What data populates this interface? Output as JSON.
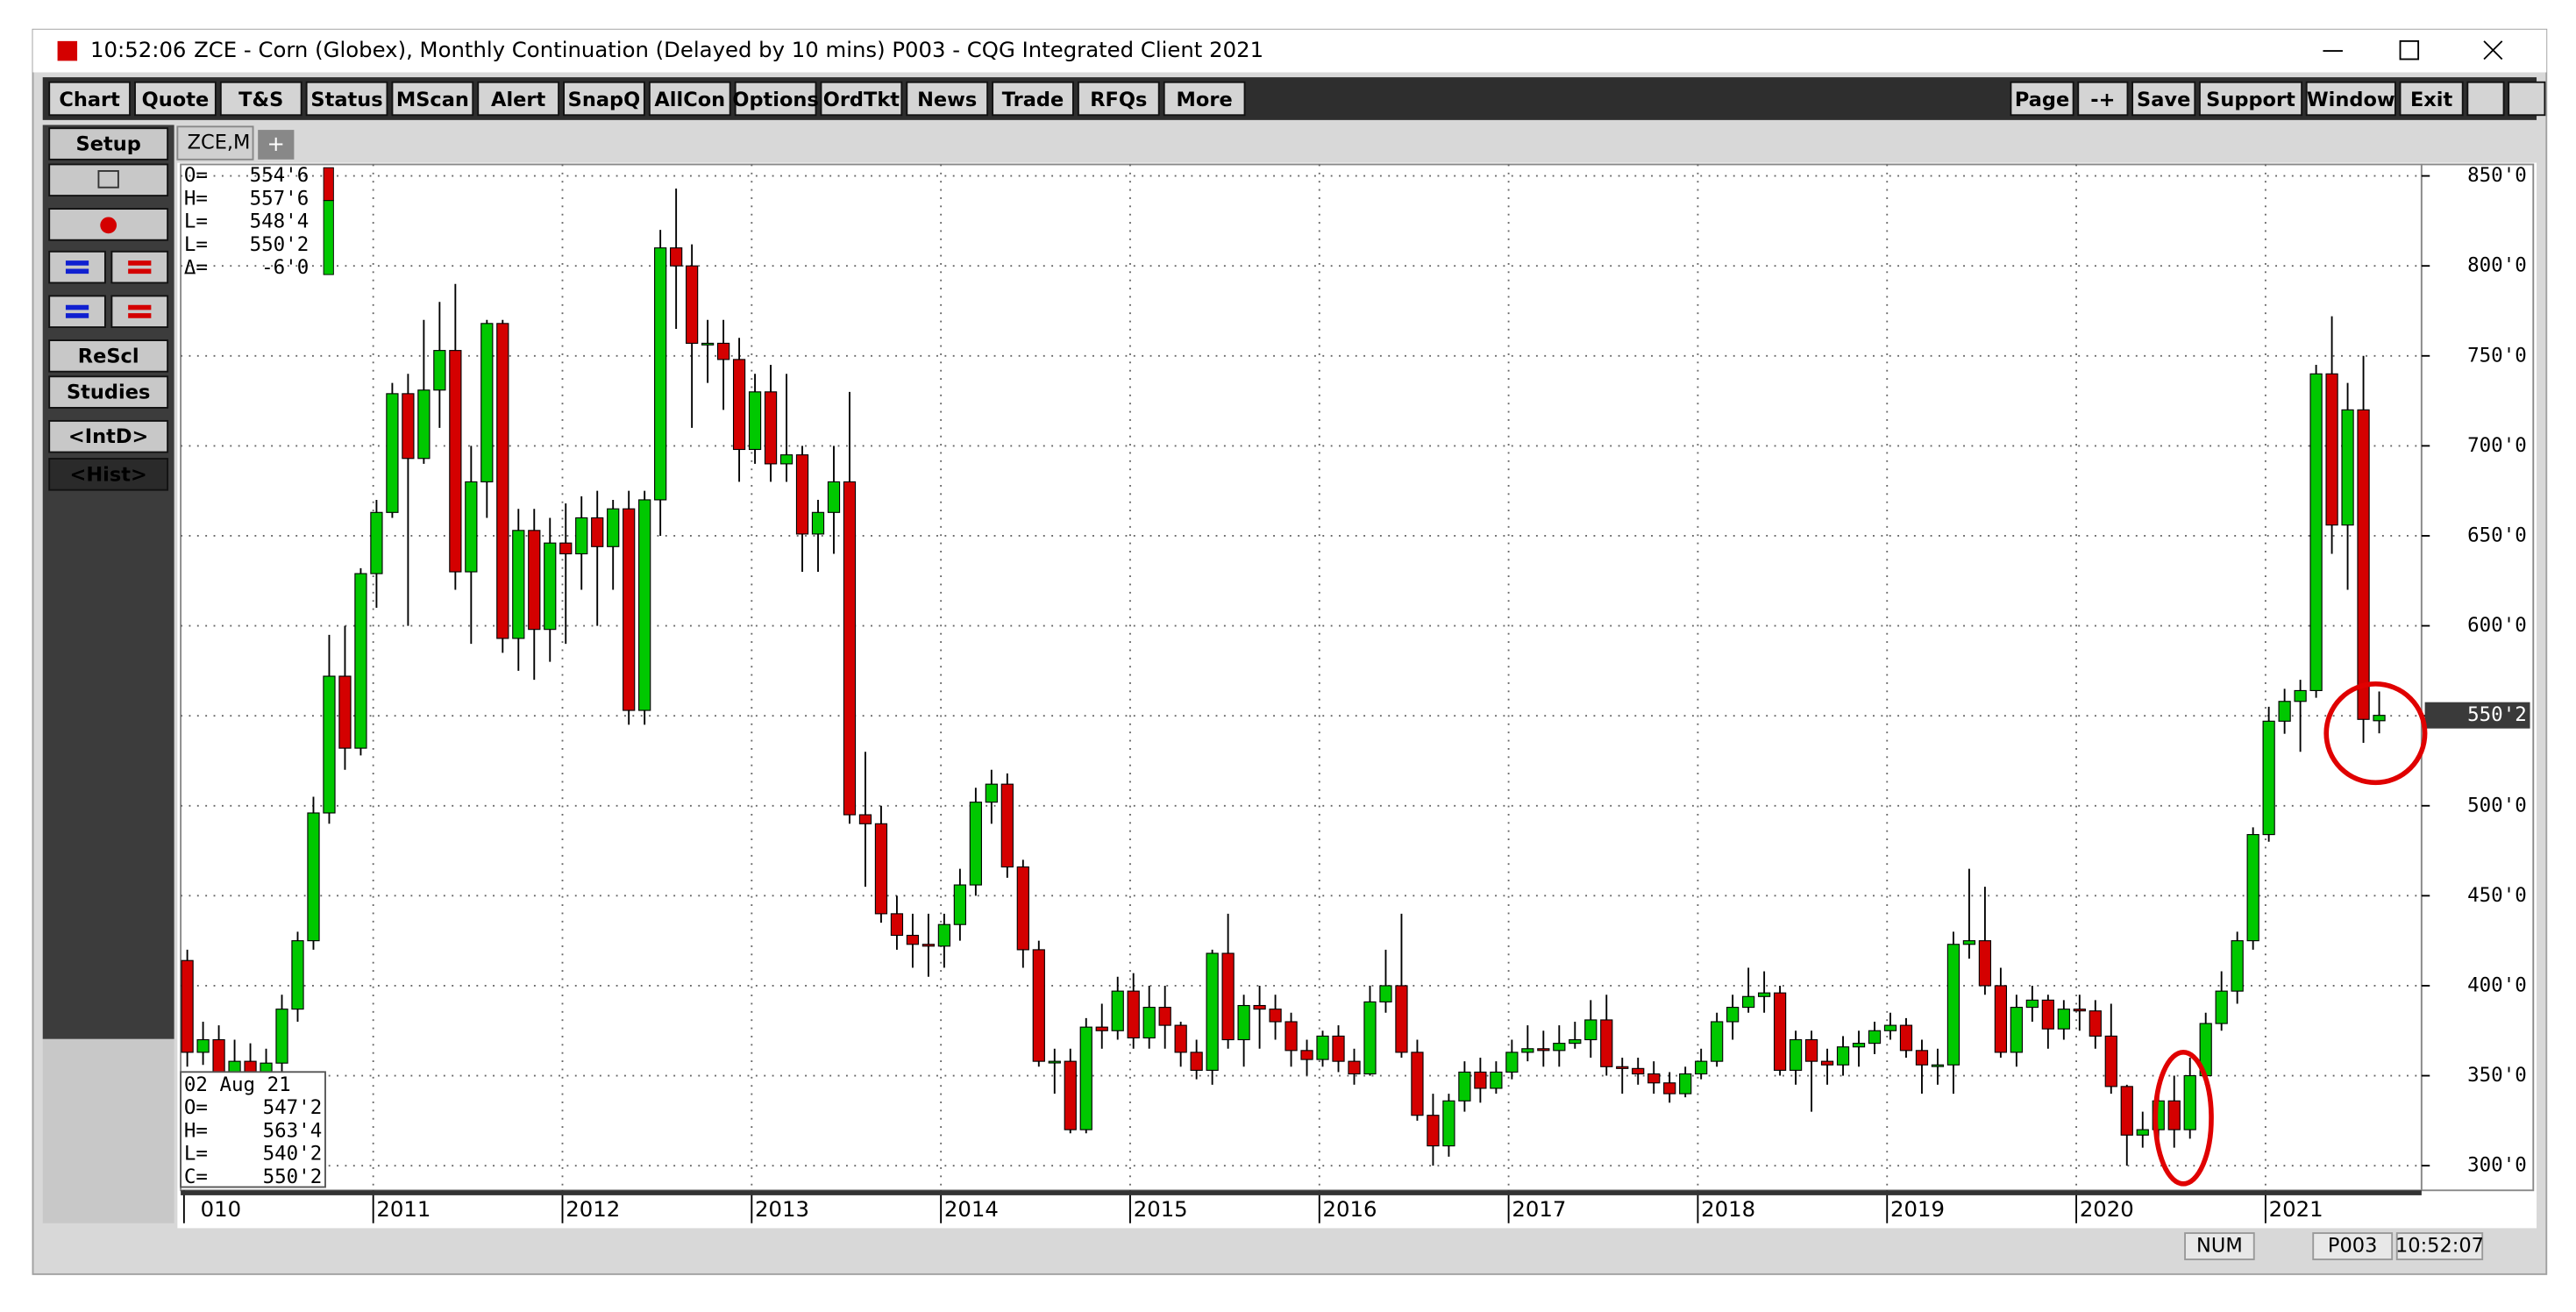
{
  "window": {
    "time": "10:52:06",
    "title": "ZCE - Corn (Globex), Monthly Continuation (Delayed by 10 mins)   P003 - CQG Integrated Client 2021"
  },
  "toolbar": {
    "left": [
      "Chart",
      "Quote",
      "T&S",
      "Status",
      "MScan",
      "Alert",
      "SnapQ",
      "AllCon",
      "Options",
      "OrdTkt",
      "News",
      "Trade",
      "RFQs",
      "More"
    ],
    "right": [
      "Page",
      "-+",
      "Save",
      "Support",
      "Window",
      "Exit"
    ]
  },
  "sidebar": {
    "setup": "Setup",
    "rescale": "ReScl",
    "studies": "Studies",
    "intraday": "<IntD>",
    "historical": "<Hist>"
  },
  "tabs": {
    "active": "ZCE,M",
    "add": "+"
  },
  "info_top": [
    {
      "label": "O=",
      "value": "554'6"
    },
    {
      "label": "H=",
      "value": "557'6"
    },
    {
      "label": "L=",
      "value": "548'4"
    },
    {
      "label": "L=",
      "value": "550'2"
    },
    {
      "label": "Δ=",
      "value": "-6'0"
    }
  ],
  "info_bottom": {
    "date": "02 Aug 21",
    "rows": [
      {
        "label": "O=",
        "value": "547'2"
      },
      {
        "label": "H=",
        "value": "563'4"
      },
      {
        "label": "L=",
        "value": "540'2"
      },
      {
        "label": "C=",
        "value": "550'2"
      }
    ]
  },
  "status": {
    "num": "NUM",
    "page": "P003",
    "time": "10:52:07"
  },
  "chart_data": {
    "type": "candlestick",
    "grid": true,
    "up_color": "#00c800",
    "down_color": "#d40000",
    "ylim": [
      300,
      850
    ],
    "yticks": [
      {
        "value": 300,
        "label": "300'0"
      },
      {
        "value": 350,
        "label": "350'0"
      },
      {
        "value": 400,
        "label": "400'0"
      },
      {
        "value": 450,
        "label": "450'0"
      },
      {
        "value": 500,
        "label": "500'0"
      },
      {
        "value": 550,
        "label": "550'0"
      },
      {
        "value": 600,
        "label": "600'0"
      },
      {
        "value": 650,
        "label": "650'0"
      },
      {
        "value": 700,
        "label": "700'0"
      },
      {
        "value": 750,
        "label": "750'0"
      },
      {
        "value": 800,
        "label": "800'0"
      },
      {
        "value": 850,
        "label": "850'0"
      }
    ],
    "xlim": [
      0,
      142
    ],
    "xticks": [
      {
        "value": 0,
        "label": "010"
      },
      {
        "value": 12,
        "label": "2011"
      },
      {
        "value": 24,
        "label": "2012"
      },
      {
        "value": 36,
        "label": "2013"
      },
      {
        "value": 48,
        "label": "2014"
      },
      {
        "value": 60,
        "label": "2015"
      },
      {
        "value": 72,
        "label": "2016"
      },
      {
        "value": 84,
        "label": "2017"
      },
      {
        "value": 96,
        "label": "2018"
      },
      {
        "value": 108,
        "label": "2019"
      },
      {
        "value": 120,
        "label": "2020"
      },
      {
        "value": 132,
        "label": "2021"
      }
    ],
    "last_price": {
      "value": 550.25,
      "label": "550'2"
    },
    "open": [
      414,
      363,
      370,
      345,
      358,
      350,
      357,
      387,
      425,
      496,
      572,
      532,
      629,
      663,
      729,
      693,
      731,
      753,
      630,
      680,
      768,
      593,
      653,
      598,
      646,
      640,
      660,
      644,
      665,
      553,
      670,
      810,
      800,
      757,
      757,
      748,
      698,
      730,
      690,
      695,
      651,
      663,
      680,
      495,
      490,
      440,
      428,
      423,
      422,
      434,
      456,
      502,
      512,
      466,
      420,
      358,
      358,
      320,
      377,
      375,
      397,
      371,
      388,
      378,
      363,
      353,
      418,
      370,
      389,
      387,
      380,
      364,
      359,
      372,
      358,
      351,
      391,
      400,
      363,
      328,
      311,
      336,
      352,
      343,
      352,
      363,
      365,
      364,
      368,
      370,
      381,
      355,
      354,
      351,
      346,
      340,
      351,
      358,
      380,
      388,
      394,
      396,
      353,
      370,
      358,
      356,
      366,
      368,
      375,
      378,
      364,
      356,
      356,
      423,
      425,
      400,
      363,
      388,
      392,
      376,
      387,
      386,
      372,
      344,
      317,
      320,
      336,
      320,
      350,
      379,
      397,
      425,
      484,
      547,
      558,
      564,
      740,
      656,
      720,
      547.25
    ],
    "high": [
      420,
      380,
      378,
      370,
      368,
      365,
      395,
      430,
      505,
      595,
      600,
      632,
      670,
      735,
      740,
      770,
      780,
      790,
      700,
      770,
      770,
      665,
      665,
      660,
      668,
      672,
      675,
      670,
      675,
      675,
      820,
      843,
      812,
      770,
      770,
      760,
      740,
      745,
      740,
      700,
      670,
      700,
      730,
      530,
      500,
      450,
      440,
      440,
      440,
      465,
      510,
      520,
      518,
      470,
      425,
      365,
      365,
      382,
      390,
      405,
      407,
      400,
      400,
      380,
      370,
      420,
      440,
      395,
      400,
      395,
      385,
      370,
      375,
      378,
      365,
      400,
      420,
      440,
      370,
      340,
      340,
      358,
      360,
      358,
      370,
      378,
      375,
      378,
      380,
      392,
      395,
      360,
      360,
      358,
      352,
      355,
      365,
      385,
      395,
      410,
      408,
      400,
      375,
      375,
      365,
      372,
      375,
      380,
      385,
      382,
      370,
      365,
      430,
      465,
      455,
      410,
      395,
      400,
      395,
      392,
      395,
      392,
      390,
      345,
      330,
      345,
      350,
      360,
      385,
      408,
      430,
      488,
      555,
      565,
      570,
      745,
      772,
      735,
      750,
      563.5
    ],
    "low": [
      355,
      356,
      340,
      335,
      340,
      338,
      345,
      380,
      420,
      490,
      520,
      528,
      610,
      660,
      600,
      690,
      710,
      620,
      590,
      660,
      585,
      575,
      570,
      580,
      590,
      620,
      600,
      620,
      545,
      545,
      650,
      765,
      710,
      735,
      720,
      680,
      690,
      680,
      680,
      630,
      630,
      640,
      490,
      455,
      435,
      420,
      410,
      405,
      410,
      425,
      450,
      490,
      460,
      410,
      355,
      340,
      318,
      318,
      365,
      370,
      365,
      365,
      365,
      355,
      348,
      345,
      365,
      355,
      365,
      370,
      355,
      350,
      355,
      352,
      345,
      350,
      385,
      360,
      325,
      300,
      305,
      330,
      335,
      340,
      348,
      358,
      355,
      355,
      365,
      360,
      350,
      340,
      345,
      340,
      335,
      338,
      348,
      355,
      370,
      385,
      385,
      350,
      345,
      330,
      345,
      350,
      355,
      362,
      370,
      360,
      340,
      345,
      340,
      415,
      395,
      360,
      355,
      380,
      365,
      370,
      375,
      365,
      340,
      300,
      310,
      315,
      310,
      315,
      345,
      375,
      390,
      420,
      480,
      540,
      530,
      560,
      640,
      620,
      535,
      540.25
    ],
    "close": [
      363,
      370,
      345,
      358,
      350,
      357,
      387,
      425,
      496,
      572,
      532,
      629,
      663,
      729,
      693,
      731,
      753,
      630,
      680,
      768,
      593,
      653,
      598,
      646,
      640,
      660,
      644,
      665,
      553,
      670,
      810,
      800,
      757,
      757,
      748,
      698,
      730,
      690,
      695,
      651,
      663,
      680,
      495,
      490,
      440,
      428,
      423,
      422,
      434,
      456,
      502,
      512,
      466,
      420,
      358,
      358,
      320,
      377,
      375,
      397,
      371,
      388,
      378,
      363,
      353,
      418,
      370,
      389,
      387,
      380,
      364,
      359,
      372,
      358,
      351,
      391,
      400,
      363,
      328,
      311,
      336,
      352,
      343,
      352,
      363,
      365,
      364,
      368,
      370,
      381,
      355,
      354,
      351,
      346,
      340,
      351,
      358,
      380,
      388,
      394,
      396,
      353,
      370,
      358,
      356,
      366,
      368,
      375,
      378,
      364,
      356,
      356,
      423,
      425,
      400,
      363,
      388,
      392,
      376,
      387,
      386,
      372,
      344,
      317,
      320,
      336,
      320,
      350,
      379,
      397,
      425,
      484,
      547,
      558,
      564,
      740,
      656,
      720,
      548,
      550.25
    ]
  }
}
